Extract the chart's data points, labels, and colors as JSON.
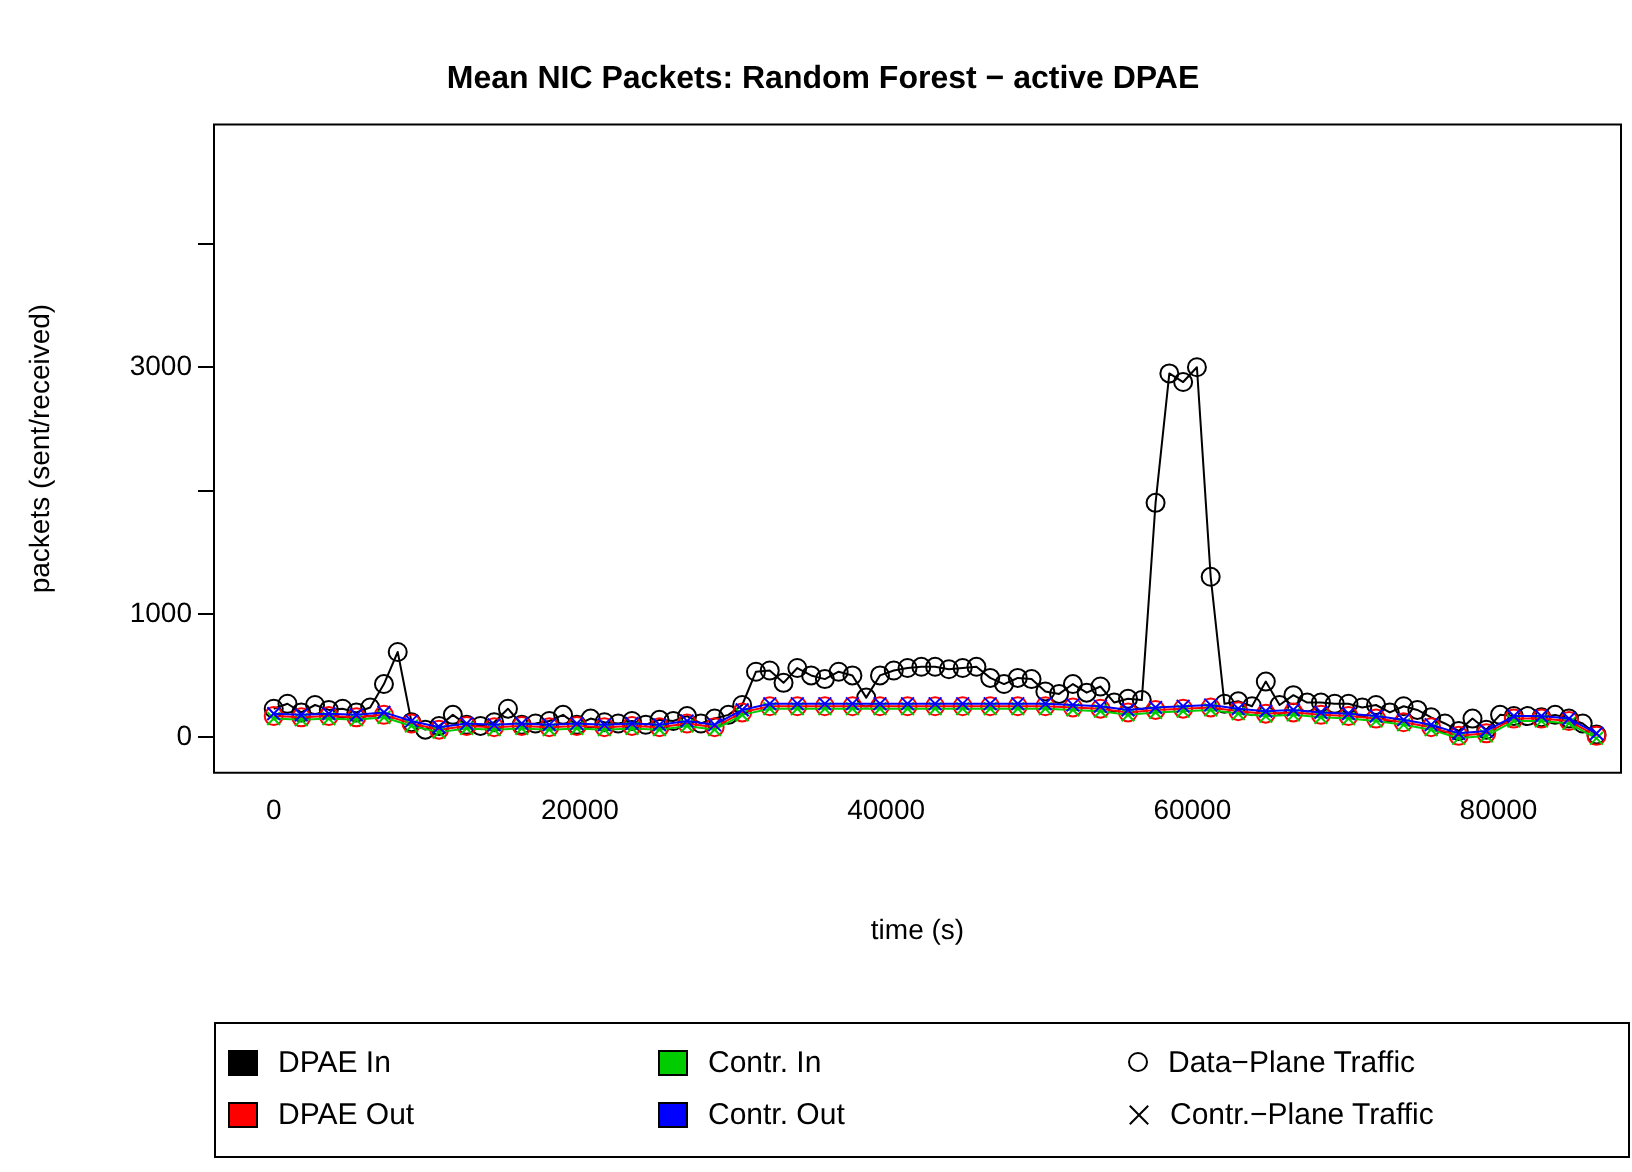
{
  "chart_data": {
    "type": "line",
    "title": "Mean NIC Packets: Random Forest − active DPAE",
    "xlabel": "time (s)",
    "ylabel": "packets (sent/received)",
    "xlim": [
      -3900,
      88000
    ],
    "xticks": [
      0,
      20000,
      40000,
      60000,
      80000
    ],
    "ylim": [
      -290,
      4970
    ],
    "yticks": [
      0,
      1000,
      {
        "value": 2000,
        "label": null
      },
      3000,
      {
        "value": 4000,
        "label": null
      }
    ],
    "legend": "bottom",
    "grid": false,
    "annotations": [
      "Data−Plane Traffic",
      "Contr.−Plane Traffic"
    ],
    "series": [
      {
        "name": "DPAE In",
        "color": "#000000",
        "marker": "circle",
        "x": [
          0,
          900,
          1800,
          2700,
          3600,
          4500,
          5400,
          6300,
          7200,
          8100,
          9000,
          9900,
          10800,
          11700,
          12600,
          13500,
          14400,
          15300,
          16200,
          17100,
          18000,
          18900,
          19800,
          20700,
          21600,
          22500,
          23400,
          24300,
          25200,
          26100,
          27000,
          27900,
          28800,
          29700,
          30600,
          31500,
          32400,
          33300,
          34200,
          35100,
          36000,
          36900,
          37800,
          38700,
          39600,
          40500,
          41400,
          42300,
          43200,
          44100,
          45000,
          45900,
          46800,
          47700,
          48600,
          49500,
          50400,
          51300,
          52200,
          53100,
          54000,
          54900,
          55800,
          56700,
          57600,
          58500,
          59400,
          60300,
          61200,
          62100,
          63000,
          63900,
          64800,
          65700,
          66600,
          67500,
          68400,
          69300,
          70200,
          71100,
          72000,
          72900,
          73800,
          74700,
          75600,
          76500,
          77400,
          78300,
          79200,
          80100,
          81000,
          81900,
          82800,
          83700,
          84600,
          85500,
          86400
        ],
        "values": [
          230,
          270,
          200,
          260,
          220,
          230,
          200,
          240,
          430,
          690,
          120,
          60,
          90,
          180,
          100,
          90,
          120,
          230,
          100,
          110,
          130,
          180,
          100,
          150,
          120,
          110,
          130,
          100,
          140,
          130,
          170,
          110,
          150,
          180,
          260,
          530,
          540,
          440,
          560,
          500,
          470,
          530,
          500,
          320,
          500,
          540,
          560,
          570,
          570,
          550,
          560,
          570,
          480,
          430,
          480,
          470,
          370,
          350,
          430,
          360,
          410,
          280,
          310,
          300,
          1900,
          2950,
          2880,
          3000,
          1300,
          270,
          290,
          250,
          450,
          260,
          340,
          280,
          280,
          270,
          270,
          240,
          260,
          200,
          250,
          220,
          160,
          110,
          50,
          150,
          60,
          180,
          170,
          170,
          160,
          180,
          150,
          110,
          20
        ]
      },
      {
        "name": "DPAE Out",
        "color": "#ff0000",
        "marker": "circle",
        "x": [
          0,
          1800,
          3600,
          5400,
          7200,
          9000,
          10800,
          12600,
          14400,
          16200,
          18000,
          19800,
          21600,
          23400,
          25200,
          27000,
          28800,
          30600,
          32400,
          34200,
          36000,
          37800,
          39600,
          41400,
          43200,
          45000,
          46800,
          48600,
          50400,
          52200,
          54000,
          55800,
          57600,
          59400,
          61200,
          63000,
          64800,
          66600,
          68400,
          70200,
          72000,
          73800,
          75600,
          77400,
          79200,
          81000,
          82800,
          84600,
          86400
        ],
        "values": [
          170,
          160,
          170,
          160,
          180,
          110,
          60,
          90,
          80,
          90,
          80,
          90,
          80,
          90,
          80,
          110,
          80,
          200,
          250,
          250,
          250,
          250,
          250,
          250,
          250,
          250,
          250,
          250,
          250,
          240,
          230,
          200,
          220,
          230,
          240,
          210,
          190,
          200,
          180,
          170,
          150,
          120,
          80,
          10,
          30,
          150,
          150,
          130,
          10
        ]
      },
      {
        "name": "Contr. In",
        "color": "#00cc00",
        "marker": "cross",
        "x": [
          0,
          1800,
          3600,
          5400,
          7200,
          9000,
          10800,
          12600,
          14400,
          16200,
          18000,
          19800,
          21600,
          23400,
          25200,
          27000,
          28800,
          30600,
          32400,
          34200,
          36000,
          37800,
          39600,
          41400,
          43200,
          45000,
          46800,
          48600,
          50400,
          52200,
          54000,
          55800,
          57600,
          59400,
          61200,
          63000,
          64800,
          66600,
          68400,
          70200,
          72000,
          73800,
          75600,
          77400,
          79200,
          81000,
          82800,
          84600,
          86400
        ],
        "values": [
          150,
          140,
          150,
          140,
          160,
          90,
          40,
          70,
          60,
          70,
          60,
          70,
          60,
          70,
          60,
          90,
          60,
          180,
          230,
          230,
          230,
          230,
          230,
          230,
          230,
          230,
          230,
          230,
          230,
          220,
          210,
          180,
          200,
          210,
          220,
          190,
          170,
          180,
          160,
          150,
          130,
          100,
          60,
          -10,
          10,
          130,
          130,
          110,
          -10
        ]
      },
      {
        "name": "Contr. Out",
        "color": "#0000ff",
        "marker": "cross",
        "x": [
          0,
          1800,
          3600,
          5400,
          7200,
          9000,
          10800,
          12600,
          14400,
          16200,
          18000,
          19800,
          21600,
          23400,
          25200,
          27000,
          28800,
          30600,
          32400,
          34200,
          36000,
          37800,
          39600,
          41400,
          43200,
          45000,
          46800,
          48600,
          50400,
          52200,
          54000,
          55800,
          57600,
          59400,
          61200,
          63000,
          64800,
          66600,
          68400,
          70200,
          72000,
          73800,
          75600,
          77400,
          79200,
          81000,
          82800,
          84600,
          86400
        ],
        "values": [
          190,
          180,
          190,
          180,
          200,
          130,
          80,
          110,
          100,
          110,
          100,
          110,
          100,
          110,
          100,
          130,
          100,
          220,
          270,
          270,
          270,
          270,
          270,
          270,
          270,
          270,
          270,
          270,
          270,
          260,
          250,
          220,
          240,
          250,
          260,
          230,
          210,
          220,
          200,
          190,
          170,
          140,
          100,
          30,
          50,
          170,
          170,
          150,
          30
        ]
      }
    ]
  }
}
